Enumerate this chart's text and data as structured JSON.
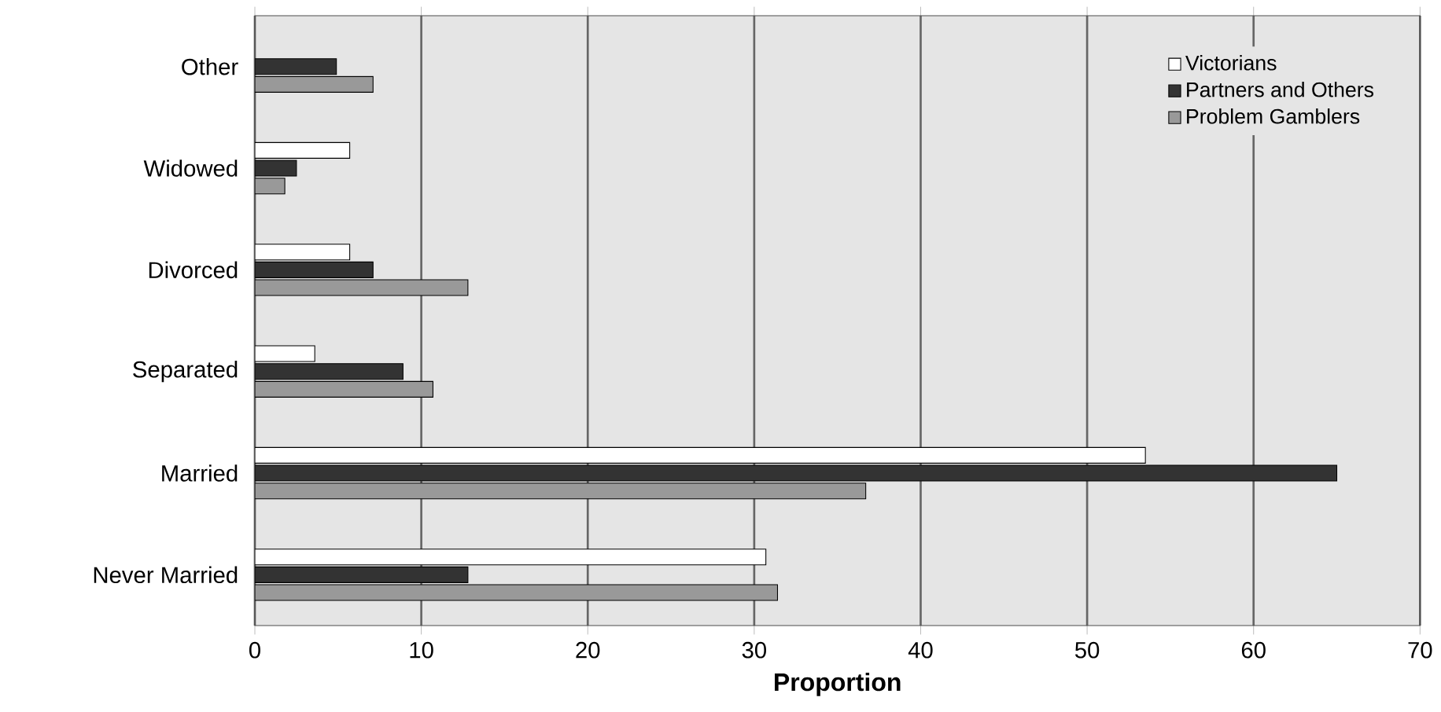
{
  "chart_data": {
    "type": "bar",
    "orientation": "horizontal",
    "xlabel": "Proportion",
    "categories": [
      "Other",
      "Widowed",
      "Divorced",
      "Separated",
      "Married",
      "Never Married"
    ],
    "series": [
      {
        "name": "Victorians",
        "color": "#ffffff",
        "values": [
          null,
          5.7,
          5.7,
          3.6,
          53.5,
          30.7
        ]
      },
      {
        "name": "Partners and Others",
        "color": "#333333",
        "values": [
          4.9,
          2.5,
          7.1,
          8.9,
          65.0,
          12.8
        ]
      },
      {
        "name": "Problem Gamblers",
        "color": "#999999",
        "values": [
          7.1,
          1.8,
          12.8,
          10.7,
          36.7,
          31.4
        ]
      }
    ],
    "xlim": [
      0,
      70
    ],
    "xticks": [
      0,
      10,
      20,
      30,
      40,
      50,
      60,
      70
    ],
    "grid": "x",
    "legend": "top right"
  }
}
